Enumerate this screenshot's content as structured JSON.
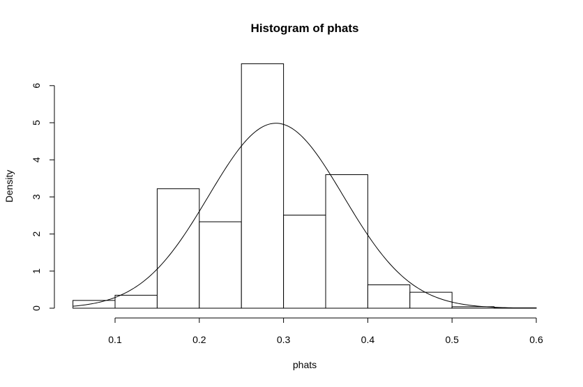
{
  "chart_data": {
    "type": "bar",
    "title": "Histogram of phats",
    "xlabel": "phats",
    "ylabel": "Density",
    "xlim": [
      0.05,
      0.6
    ],
    "ylim": [
      0,
      6.6
    ],
    "x_ticks": [
      "0.1",
      "0.2",
      "0.3",
      "0.4",
      "0.5",
      "0.6"
    ],
    "y_ticks": [
      "0",
      "1",
      "2",
      "3",
      "4",
      "5",
      "6"
    ],
    "bins": [
      {
        "left": 0.05,
        "right": 0.1,
        "density": 0.21
      },
      {
        "left": 0.1,
        "right": 0.15,
        "density": 0.35
      },
      {
        "left": 0.15,
        "right": 0.2,
        "density": 3.22
      },
      {
        "left": 0.2,
        "right": 0.25,
        "density": 2.33
      },
      {
        "left": 0.25,
        "right": 0.3,
        "density": 6.59
      },
      {
        "left": 0.3,
        "right": 0.35,
        "density": 2.51
      },
      {
        "left": 0.35,
        "right": 0.4,
        "density": 3.6
      },
      {
        "left": 0.4,
        "right": 0.45,
        "density": 0.63
      },
      {
        "left": 0.45,
        "right": 0.5,
        "density": 0.43
      },
      {
        "left": 0.5,
        "right": 0.55,
        "density": 0.04
      },
      {
        "left": 0.55,
        "right": 0.6,
        "density": 0.01
      }
    ],
    "overlay_curve": {
      "type": "normal_density",
      "mean": 0.291,
      "sd": 0.08,
      "x_range": [
        0.05,
        0.6
      ]
    },
    "grid": false,
    "legend": "none"
  }
}
